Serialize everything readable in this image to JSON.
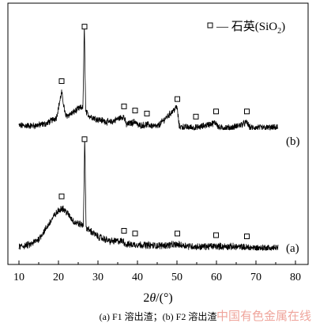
{
  "chart_data": {
    "type": "line",
    "xlim": [
      10,
      80
    ],
    "x_ticks": [
      "10",
      "20",
      "30",
      "40",
      "50",
      "60",
      "70",
      "80"
    ],
    "xlabel": {
      "main": "2",
      "italic": "θ",
      "tail": "/(°)"
    },
    "grid": false,
    "legend": {
      "position": "top-right",
      "marker": "open-square",
      "label_main": "— 石英(SiO",
      "label_sub": "2",
      "label_tail": ")"
    },
    "series": [
      {
        "name": "(b)",
        "tag": "(b)",
        "profile": [
          [
            10,
            0.04
          ],
          [
            14,
            0.04
          ],
          [
            17,
            0.06
          ],
          [
            19.5,
            0.12
          ],
          [
            20.8,
            0.36
          ],
          [
            21.8,
            0.13
          ],
          [
            23.5,
            0.16
          ],
          [
            25,
            0.2
          ],
          [
            26.2,
            0.22
          ],
          [
            26.55,
            1.0
          ],
          [
            26.9,
            0.17
          ],
          [
            28,
            0.13
          ],
          [
            30,
            0.1
          ],
          [
            33,
            0.07
          ],
          [
            36.5,
            0.13
          ],
          [
            37.2,
            0.05
          ],
          [
            39.5,
            0.08
          ],
          [
            40.2,
            0.04
          ],
          [
            42.4,
            0.05
          ],
          [
            45,
            0.03
          ],
          [
            50,
            0.22
          ],
          [
            50.6,
            0.03
          ],
          [
            55,
            0.02
          ],
          [
            59.9,
            0.07
          ],
          [
            60.6,
            0.02
          ],
          [
            64,
            0.02
          ],
          [
            67.7,
            0.07
          ],
          [
            68.5,
            0.02
          ],
          [
            72,
            0.02
          ],
          [
            75,
            0.02
          ]
        ],
        "peak_markers": [
          20.8,
          26.6,
          36.6,
          39.4,
          42.4,
          50.1,
          54.8,
          59.9,
          67.7
        ]
      },
      {
        "name": "(a)",
        "tag": "(a)",
        "profile": [
          [
            10,
            0.03
          ],
          [
            13,
            0.05
          ],
          [
            15,
            0.1
          ],
          [
            17,
            0.2
          ],
          [
            19,
            0.31
          ],
          [
            20.8,
            0.38
          ],
          [
            22,
            0.34
          ],
          [
            24,
            0.25
          ],
          [
            26.3,
            0.22
          ],
          [
            26.65,
            1.0
          ],
          [
            27,
            0.2
          ],
          [
            30,
            0.12
          ],
          [
            33,
            0.08
          ],
          [
            36.5,
            0.08
          ],
          [
            37,
            0.05
          ],
          [
            40,
            0.05
          ],
          [
            45,
            0.04
          ],
          [
            50,
            0.05
          ],
          [
            55,
            0.03
          ],
          [
            60,
            0.035
          ],
          [
            65,
            0.03
          ],
          [
            70,
            0.02
          ],
          [
            75,
            0.02
          ]
        ],
        "peak_markers": [
          20.8,
          26.6,
          36.6,
          39.4,
          50.1,
          59.9,
          67.7
        ]
      }
    ]
  },
  "caption": "(a) F1 溶出渣；(b) F2 溶出渣",
  "watermark": "中国有色金属在线"
}
